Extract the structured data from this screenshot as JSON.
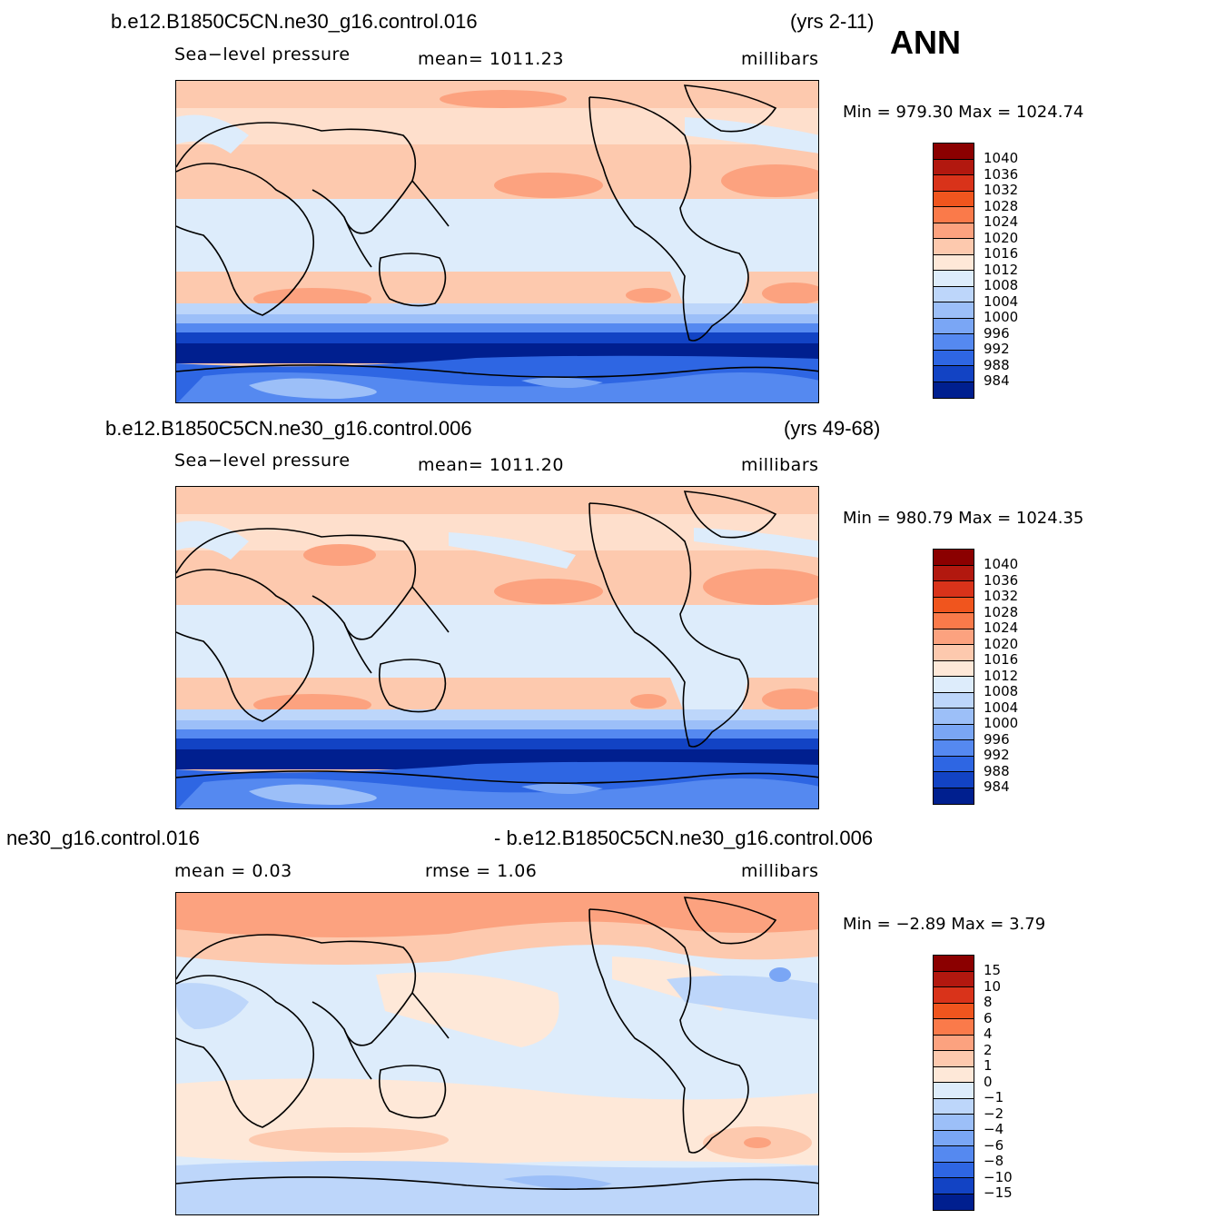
{
  "season": "ANN",
  "panels": [
    {
      "run_title": "b.e12.B1850C5CN.ne30_g16.control.016",
      "years": "(yrs 2-11)",
      "left_label": "Sea−level pressure",
      "center_label": "mean=  1011.23",
      "units": "millibars",
      "minmax": "Min  =  979.30  Max  =  1024.74",
      "colorbar": {
        "levels": [
          "1040",
          "1036",
          "1032",
          "1028",
          "1024",
          "1020",
          "1016",
          "1012",
          "1008",
          "1004",
          "1000",
          "996",
          "992",
          "988",
          "984"
        ],
        "colors": [
          "#8b0000",
          "#b2180f",
          "#d9331a",
          "#f0551e",
          "#fa7a4a",
          "#fca27f",
          "#fdc9ae",
          "#fee8d8",
          "#ddecfb",
          "#bdd6fa",
          "#9cbff8",
          "#7aa6f5",
          "#5589f0",
          "#2e66e3",
          "#1243c4",
          "#001f8f"
        ]
      }
    },
    {
      "run_title": "b.e12.B1850C5CN.ne30_g16.control.006",
      "years": "(yrs 49-68)",
      "left_label": "Sea−level pressure",
      "center_label": "mean=  1011.20",
      "units": "millibars",
      "minmax": "Min  =  980.79  Max  =  1024.35",
      "colorbar": {
        "levels": [
          "1040",
          "1036",
          "1032",
          "1028",
          "1024",
          "1020",
          "1016",
          "1012",
          "1008",
          "1004",
          "1000",
          "996",
          "992",
          "988",
          "984"
        ],
        "colors": [
          "#8b0000",
          "#b2180f",
          "#d9331a",
          "#f0551e",
          "#fa7a4a",
          "#fca27f",
          "#fdc9ae",
          "#fee8d8",
          "#ddecfb",
          "#bdd6fa",
          "#9cbff8",
          "#7aa6f5",
          "#5589f0",
          "#2e66e3",
          "#1243c4",
          "#001f8f"
        ]
      }
    },
    {
      "run_title_left": "ne30_g16.control.016",
      "run_title_right": "- b.e12.B1850C5CN.ne30_g16.control.006",
      "left_label": "mean  =     0.03",
      "center_label": "rmse  =     1.06",
      "units": "millibars",
      "minmax": "Min  =    −2.89  Max  =      3.79",
      "colorbar": {
        "levels": [
          "15",
          "10",
          "8",
          "6",
          "4",
          "2",
          "1",
          "0",
          "−1",
          "−2",
          "−4",
          "−6",
          "−8",
          "−10",
          "−15"
        ],
        "colors": [
          "#8b0000",
          "#b2180f",
          "#d9331a",
          "#f0551e",
          "#fa7a4a",
          "#fca27f",
          "#fdc9ae",
          "#fee8d8",
          "#ddecfb",
          "#bdd6fa",
          "#9cbff8",
          "#7aa6f5",
          "#5589f0",
          "#2e66e3",
          "#1243c4",
          "#001f8f"
        ]
      }
    }
  ]
}
